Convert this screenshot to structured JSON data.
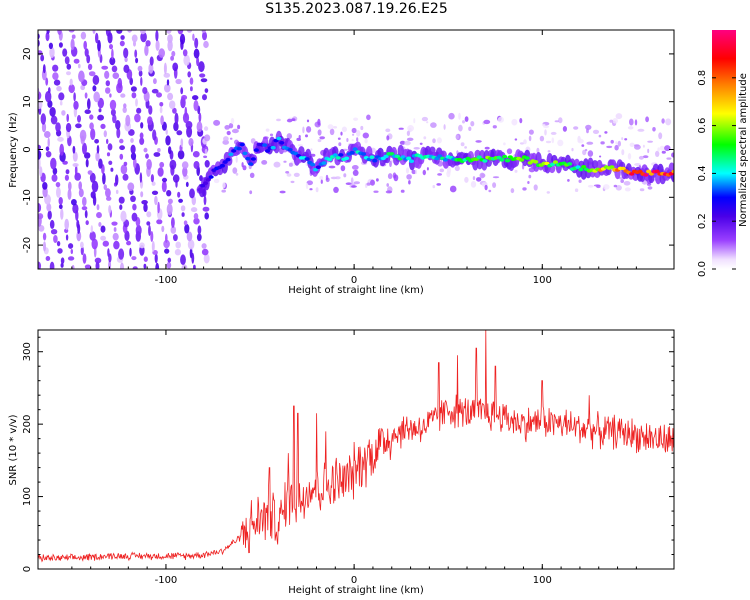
{
  "title": "S135.2023.087.19.26.E25",
  "chart_data": [
    {
      "type": "heatmap",
      "xlabel": "Height of straight line (km)",
      "ylabel": "Frequency (Hz)",
      "xlim": [
        -168,
        170
      ],
      "ylim": [
        -25,
        25
      ],
      "xticks": [
        -100,
        0,
        100
      ],
      "xtick_labels": [
        "-100",
        "0",
        "100"
      ],
      "yticks": [
        -20,
        -10,
        0,
        10,
        20
      ],
      "ytick_labels": [
        "-20",
        "-10",
        "0",
        "10",
        "20"
      ],
      "grid": false,
      "colorbar": {
        "label": "Normalized spectral amplitude",
        "range": [
          0,
          1
        ],
        "ticks": [
          0.0,
          0.2,
          0.4,
          0.6,
          0.8
        ],
        "tick_labels": [
          "0.0",
          "0.2",
          "0.4",
          "0.6",
          "0.8"
        ],
        "colors": [
          "#ffffff",
          "#e6c8ff",
          "#8a2be2",
          "#5a00e0",
          "#0000ff",
          "#00ffff",
          "#00ff00",
          "#ffff00",
          "#ff8000",
          "#ff0000",
          "#ff0080"
        ]
      },
      "ridge": {
        "description_points_x": [
          -80,
          -75,
          -70,
          -65,
          -60,
          -55,
          -50,
          -45,
          -40,
          -35,
          -30,
          -25,
          -20,
          -15,
          -10,
          -5,
          0,
          10,
          20,
          30,
          40,
          50,
          60,
          70,
          80,
          90,
          100,
          110,
          120,
          130,
          140,
          150,
          160,
          170
        ],
        "frequency_hz": [
          -8,
          -5,
          -3,
          -1,
          1,
          -3,
          1,
          0,
          2,
          0,
          -1,
          -2,
          -4,
          -2,
          -1,
          -2,
          0,
          -2,
          -1,
          -2,
          -1,
          -2,
          -2,
          -2,
          -2,
          -2,
          -3,
          -3,
          -4,
          -4,
          -4,
          -5,
          -5,
          -5
        ],
        "amplitude": [
          0.25,
          0.3,
          0.3,
          0.35,
          0.35,
          0.35,
          0.3,
          0.35,
          0.35,
          0.35,
          0.35,
          0.4,
          0.35,
          0.4,
          0.4,
          0.4,
          0.4,
          0.4,
          0.45,
          0.45,
          0.45,
          0.45,
          0.5,
          0.55,
          0.55,
          0.6,
          0.6,
          0.55,
          0.5,
          0.75,
          0.75,
          0.9,
          0.9,
          0.85
        ]
      }
    },
    {
      "type": "line",
      "xlabel": "Height of straight line (km)",
      "ylabel": "SNR (10 * v/v)",
      "xlim": [
        -168,
        170
      ],
      "ylim": [
        0,
        330
      ],
      "xticks": [
        -100,
        0,
        100
      ],
      "xtick_labels": [
        "-100",
        "0",
        "100"
      ],
      "yticks": [
        0,
        100,
        200,
        300
      ],
      "ytick_labels": [
        "0",
        "100",
        "200",
        "300"
      ],
      "grid": false,
      "line_color": "#ee2222",
      "x": [
        -168,
        -150,
        -130,
        -110,
        -90,
        -80,
        -70,
        -60,
        -50,
        -45,
        -40,
        -35,
        -30,
        -25,
        -20,
        -15,
        -10,
        -5,
        0,
        5,
        10,
        15,
        20,
        25,
        30,
        35,
        40,
        45,
        50,
        60,
        70,
        80,
        90,
        100,
        110,
        120,
        130,
        140,
        150,
        160,
        170
      ],
      "y": [
        15,
        15,
        18,
        18,
        18,
        20,
        25,
        45,
        70,
        75,
        60,
        100,
        90,
        110,
        115,
        110,
        120,
        120,
        135,
        150,
        160,
        175,
        185,
        190,
        195,
        195,
        200,
        210,
        220,
        215,
        215,
        210,
        200,
        205,
        200,
        195,
        190,
        190,
        185,
        180,
        175
      ],
      "peak_points": [
        [
          -45,
          140
        ],
        [
          -35,
          160
        ],
        [
          -32,
          225
        ],
        [
          -30,
          215
        ],
        [
          -20,
          215
        ],
        [
          -15,
          190
        ],
        [
          45,
          285
        ],
        [
          55,
          295
        ],
        [
          65,
          305
        ],
        [
          70,
          330
        ],
        [
          75,
          280
        ],
        [
          100,
          260
        ],
        [
          125,
          240
        ]
      ]
    }
  ]
}
